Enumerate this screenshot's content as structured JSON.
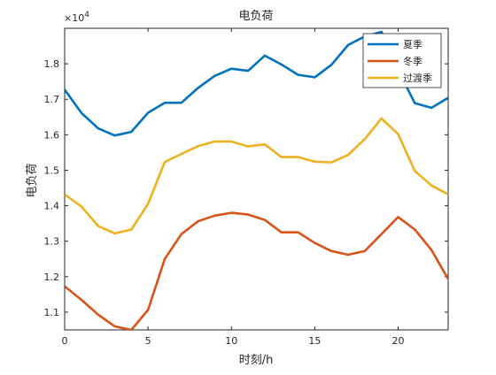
{
  "chart_data": {
    "type": "line",
    "title": "电负荷",
    "xlabel": "时刻/h",
    "ylabel": "电负荷",
    "exponent_label": "×10",
    "exponent_power": "4",
    "xlim": [
      0,
      23
    ],
    "ylim": [
      1.05,
      1.9
    ],
    "grid": false,
    "legend_position": "top-right",
    "xticks": [
      0,
      5,
      10,
      15,
      20
    ],
    "yticks": [
      1.1,
      1.2,
      1.3,
      1.4,
      1.5,
      1.6,
      1.7,
      1.8
    ],
    "ytick_labels": [
      "1.1",
      "1.2",
      "1.3",
      "1.4",
      "1.5",
      "1.6",
      "1.7",
      "1.8"
    ],
    "x": [
      0,
      1,
      2,
      3,
      4,
      5,
      6,
      7,
      8,
      9,
      10,
      11,
      12,
      13,
      14,
      15,
      16,
      17,
      18,
      19,
      20,
      21,
      22,
      23
    ],
    "series": [
      {
        "name": "夏季",
        "color": "#0072BD",
        "values": [
          1.727,
          1.662,
          1.618,
          1.598,
          1.608,
          1.662,
          1.69,
          1.69,
          1.732,
          1.766,
          1.786,
          1.78,
          1.823,
          1.798,
          1.769,
          1.762,
          1.797,
          1.853,
          1.877,
          1.89,
          1.782,
          1.689,
          1.676,
          1.704
        ]
      },
      {
        "name": "冬季",
        "color": "#D95319",
        "values": [
          1.173,
          1.135,
          1.093,
          1.06,
          1.05,
          1.106,
          1.25,
          1.32,
          1.356,
          1.372,
          1.38,
          1.375,
          1.36,
          1.325,
          1.325,
          1.295,
          1.272,
          1.262,
          1.272,
          1.32,
          1.368,
          1.333,
          1.275,
          1.193
        ]
      },
      {
        "name": "过渡季",
        "color": "#EDB120",
        "values": [
          1.432,
          1.398,
          1.343,
          1.322,
          1.333,
          1.405,
          1.523,
          1.546,
          1.568,
          1.581,
          1.581,
          1.567,
          1.573,
          1.537,
          1.537,
          1.524,
          1.522,
          1.543,
          1.588,
          1.646,
          1.602,
          1.498,
          1.457,
          1.432
        ]
      }
    ]
  }
}
